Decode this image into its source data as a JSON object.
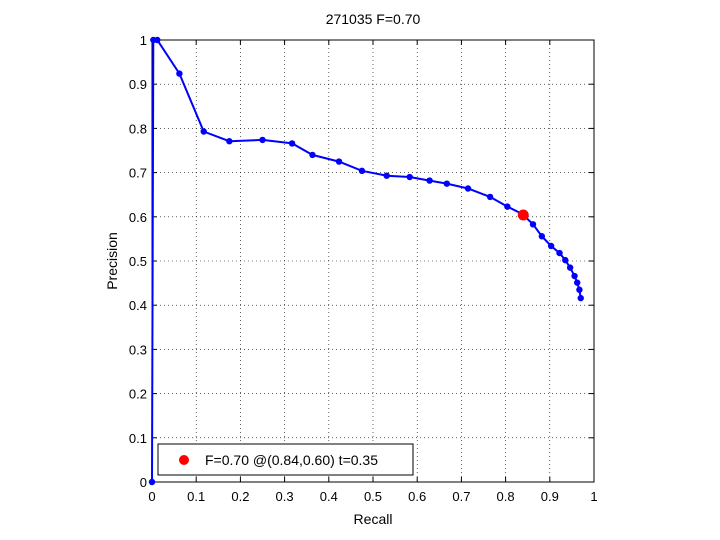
{
  "chart_data": {
    "type": "line",
    "title": "271035 F=0.70",
    "xlabel": "Recall",
    "ylabel": "Precision",
    "xlim": [
      0,
      1
    ],
    "ylim": [
      0,
      1
    ],
    "grid": true,
    "x_ticks": [
      "0",
      "0.1",
      "0.2",
      "0.3",
      "0.4",
      "0.5",
      "0.6",
      "0.7",
      "0.8",
      "0.9",
      "1"
    ],
    "y_ticks": [
      "0",
      "0.1",
      "0.2",
      "0.3",
      "0.4",
      "0.5",
      "0.6",
      "0.7",
      "0.8",
      "0.9",
      "1"
    ],
    "series": [
      {
        "color": "#0000ff",
        "marker": "dot",
        "x": [
          0.0,
          0.003,
          0.012,
          0.062,
          0.117,
          0.175,
          0.25,
          0.317,
          0.363,
          0.423,
          0.475,
          0.531,
          0.583,
          0.628,
          0.667,
          0.715,
          0.765,
          0.804,
          0.838,
          0.862,
          0.882,
          0.903,
          0.922,
          0.935,
          0.946,
          0.956,
          0.962,
          0.967,
          0.97
        ],
        "y": [
          0.0,
          1.0,
          1.0,
          0.924,
          0.793,
          0.771,
          0.774,
          0.766,
          0.74,
          0.725,
          0.704,
          0.693,
          0.69,
          0.682,
          0.675,
          0.664,
          0.645,
          0.623,
          0.606,
          0.583,
          0.556,
          0.534,
          0.518,
          0.502,
          0.485,
          0.466,
          0.451,
          0.435,
          0.416
        ]
      }
    ],
    "highlight": {
      "x": 0.84,
      "y": 0.604,
      "color": "#ff0000"
    },
    "legend": {
      "position": "bottom-left",
      "text": "F=0.70 @(0.84,0.60) t=0.35"
    }
  }
}
